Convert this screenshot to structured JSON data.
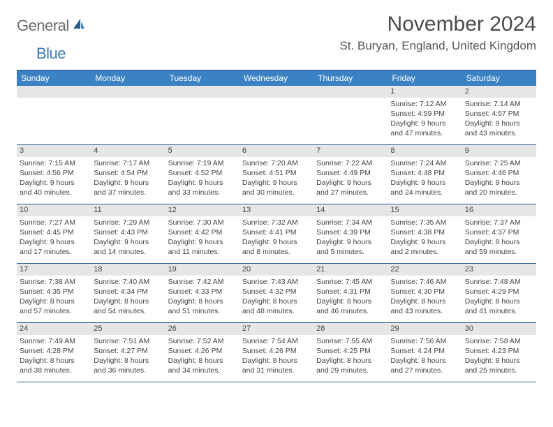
{
  "brand": {
    "part1": "General",
    "part2": "Blue"
  },
  "title": "November 2024",
  "location": "St. Buryan, England, United Kingdom",
  "colors": {
    "header_bg": "#3b82c4",
    "header_border": "#2a5c8e",
    "daynum_bg": "#e6e6e6",
    "text": "#444444",
    "logo_grey": "#6b6b6b",
    "logo_blue": "#3b7abf"
  },
  "day_headers": [
    "Sunday",
    "Monday",
    "Tuesday",
    "Wednesday",
    "Thursday",
    "Friday",
    "Saturday"
  ],
  "weeks": [
    [
      null,
      null,
      null,
      null,
      null,
      {
        "n": "1",
        "sr": "Sunrise: 7:12 AM",
        "ss": "Sunset: 4:59 PM",
        "d1": "Daylight: 9 hours",
        "d2": "and 47 minutes."
      },
      {
        "n": "2",
        "sr": "Sunrise: 7:14 AM",
        "ss": "Sunset: 4:57 PM",
        "d1": "Daylight: 9 hours",
        "d2": "and 43 minutes."
      }
    ],
    [
      {
        "n": "3",
        "sr": "Sunrise: 7:15 AM",
        "ss": "Sunset: 4:56 PM",
        "d1": "Daylight: 9 hours",
        "d2": "and 40 minutes."
      },
      {
        "n": "4",
        "sr": "Sunrise: 7:17 AM",
        "ss": "Sunset: 4:54 PM",
        "d1": "Daylight: 9 hours",
        "d2": "and 37 minutes."
      },
      {
        "n": "5",
        "sr": "Sunrise: 7:19 AM",
        "ss": "Sunset: 4:52 PM",
        "d1": "Daylight: 9 hours",
        "d2": "and 33 minutes."
      },
      {
        "n": "6",
        "sr": "Sunrise: 7:20 AM",
        "ss": "Sunset: 4:51 PM",
        "d1": "Daylight: 9 hours",
        "d2": "and 30 minutes."
      },
      {
        "n": "7",
        "sr": "Sunrise: 7:22 AM",
        "ss": "Sunset: 4:49 PM",
        "d1": "Daylight: 9 hours",
        "d2": "and 27 minutes."
      },
      {
        "n": "8",
        "sr": "Sunrise: 7:24 AM",
        "ss": "Sunset: 4:48 PM",
        "d1": "Daylight: 9 hours",
        "d2": "and 24 minutes."
      },
      {
        "n": "9",
        "sr": "Sunrise: 7:25 AM",
        "ss": "Sunset: 4:46 PM",
        "d1": "Daylight: 9 hours",
        "d2": "and 20 minutes."
      }
    ],
    [
      {
        "n": "10",
        "sr": "Sunrise: 7:27 AM",
        "ss": "Sunset: 4:45 PM",
        "d1": "Daylight: 9 hours",
        "d2": "and 17 minutes."
      },
      {
        "n": "11",
        "sr": "Sunrise: 7:29 AM",
        "ss": "Sunset: 4:43 PM",
        "d1": "Daylight: 9 hours",
        "d2": "and 14 minutes."
      },
      {
        "n": "12",
        "sr": "Sunrise: 7:30 AM",
        "ss": "Sunset: 4:42 PM",
        "d1": "Daylight: 9 hours",
        "d2": "and 11 minutes."
      },
      {
        "n": "13",
        "sr": "Sunrise: 7:32 AM",
        "ss": "Sunset: 4:41 PM",
        "d1": "Daylight: 9 hours",
        "d2": "and 8 minutes."
      },
      {
        "n": "14",
        "sr": "Sunrise: 7:34 AM",
        "ss": "Sunset: 4:39 PM",
        "d1": "Daylight: 9 hours",
        "d2": "and 5 minutes."
      },
      {
        "n": "15",
        "sr": "Sunrise: 7:35 AM",
        "ss": "Sunset: 4:38 PM",
        "d1": "Daylight: 9 hours",
        "d2": "and 2 minutes."
      },
      {
        "n": "16",
        "sr": "Sunrise: 7:37 AM",
        "ss": "Sunset: 4:37 PM",
        "d1": "Daylight: 8 hours",
        "d2": "and 59 minutes."
      }
    ],
    [
      {
        "n": "17",
        "sr": "Sunrise: 7:38 AM",
        "ss": "Sunset: 4:35 PM",
        "d1": "Daylight: 8 hours",
        "d2": "and 57 minutes."
      },
      {
        "n": "18",
        "sr": "Sunrise: 7:40 AM",
        "ss": "Sunset: 4:34 PM",
        "d1": "Daylight: 8 hours",
        "d2": "and 54 minutes."
      },
      {
        "n": "19",
        "sr": "Sunrise: 7:42 AM",
        "ss": "Sunset: 4:33 PM",
        "d1": "Daylight: 8 hours",
        "d2": "and 51 minutes."
      },
      {
        "n": "20",
        "sr": "Sunrise: 7:43 AM",
        "ss": "Sunset: 4:32 PM",
        "d1": "Daylight: 8 hours",
        "d2": "and 48 minutes."
      },
      {
        "n": "21",
        "sr": "Sunrise: 7:45 AM",
        "ss": "Sunset: 4:31 PM",
        "d1": "Daylight: 8 hours",
        "d2": "and 46 minutes."
      },
      {
        "n": "22",
        "sr": "Sunrise: 7:46 AM",
        "ss": "Sunset: 4:30 PM",
        "d1": "Daylight: 8 hours",
        "d2": "and 43 minutes."
      },
      {
        "n": "23",
        "sr": "Sunrise: 7:48 AM",
        "ss": "Sunset: 4:29 PM",
        "d1": "Daylight: 8 hours",
        "d2": "and 41 minutes."
      }
    ],
    [
      {
        "n": "24",
        "sr": "Sunrise: 7:49 AM",
        "ss": "Sunset: 4:28 PM",
        "d1": "Daylight: 8 hours",
        "d2": "and 38 minutes."
      },
      {
        "n": "25",
        "sr": "Sunrise: 7:51 AM",
        "ss": "Sunset: 4:27 PM",
        "d1": "Daylight: 8 hours",
        "d2": "and 36 minutes."
      },
      {
        "n": "26",
        "sr": "Sunrise: 7:52 AM",
        "ss": "Sunset: 4:26 PM",
        "d1": "Daylight: 8 hours",
        "d2": "and 34 minutes."
      },
      {
        "n": "27",
        "sr": "Sunrise: 7:54 AM",
        "ss": "Sunset: 4:26 PM",
        "d1": "Daylight: 8 hours",
        "d2": "and 31 minutes."
      },
      {
        "n": "28",
        "sr": "Sunrise: 7:55 AM",
        "ss": "Sunset: 4:25 PM",
        "d1": "Daylight: 8 hours",
        "d2": "and 29 minutes."
      },
      {
        "n": "29",
        "sr": "Sunrise: 7:56 AM",
        "ss": "Sunset: 4:24 PM",
        "d1": "Daylight: 8 hours",
        "d2": "and 27 minutes."
      },
      {
        "n": "30",
        "sr": "Sunrise: 7:58 AM",
        "ss": "Sunset: 4:23 PM",
        "d1": "Daylight: 8 hours",
        "d2": "and 25 minutes."
      }
    ]
  ]
}
